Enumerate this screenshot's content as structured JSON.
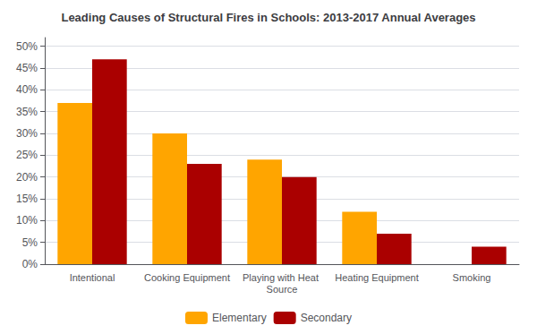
{
  "chart_data": {
    "type": "bar",
    "title": "Leading Causes of Structural Fires in Schools: 2013-2017 Annual Averages",
    "categories": [
      "Intentional",
      "Cooking Equipment",
      "Playing with Heat Source",
      "Heating Equipment",
      "Smoking"
    ],
    "series": [
      {
        "name": "Elementary",
        "color": "#FFA500",
        "values": [
          37,
          30,
          24,
          12,
          0
        ]
      },
      {
        "name": "Secondary",
        "color": "#AA0000",
        "values": [
          47,
          23,
          20,
          7,
          4
        ]
      }
    ],
    "ylim": [
      0,
      52
    ],
    "yticks": [
      {
        "value": 0,
        "label": "0%"
      },
      {
        "value": 5,
        "label": "5%"
      },
      {
        "value": 10,
        "label": "10%"
      },
      {
        "value": 15,
        "label": "15%"
      },
      {
        "value": 20,
        "label": "20%"
      },
      {
        "value": 25,
        "label": "25%"
      },
      {
        "value": 30,
        "label": "30%"
      },
      {
        "value": 35,
        "label": "35%"
      },
      {
        "value": 40,
        "label": "40%"
      },
      {
        "value": 45,
        "label": "45%"
      },
      {
        "value": 50,
        "label": "50%"
      }
    ],
    "grid": true,
    "legend": "bottom"
  }
}
